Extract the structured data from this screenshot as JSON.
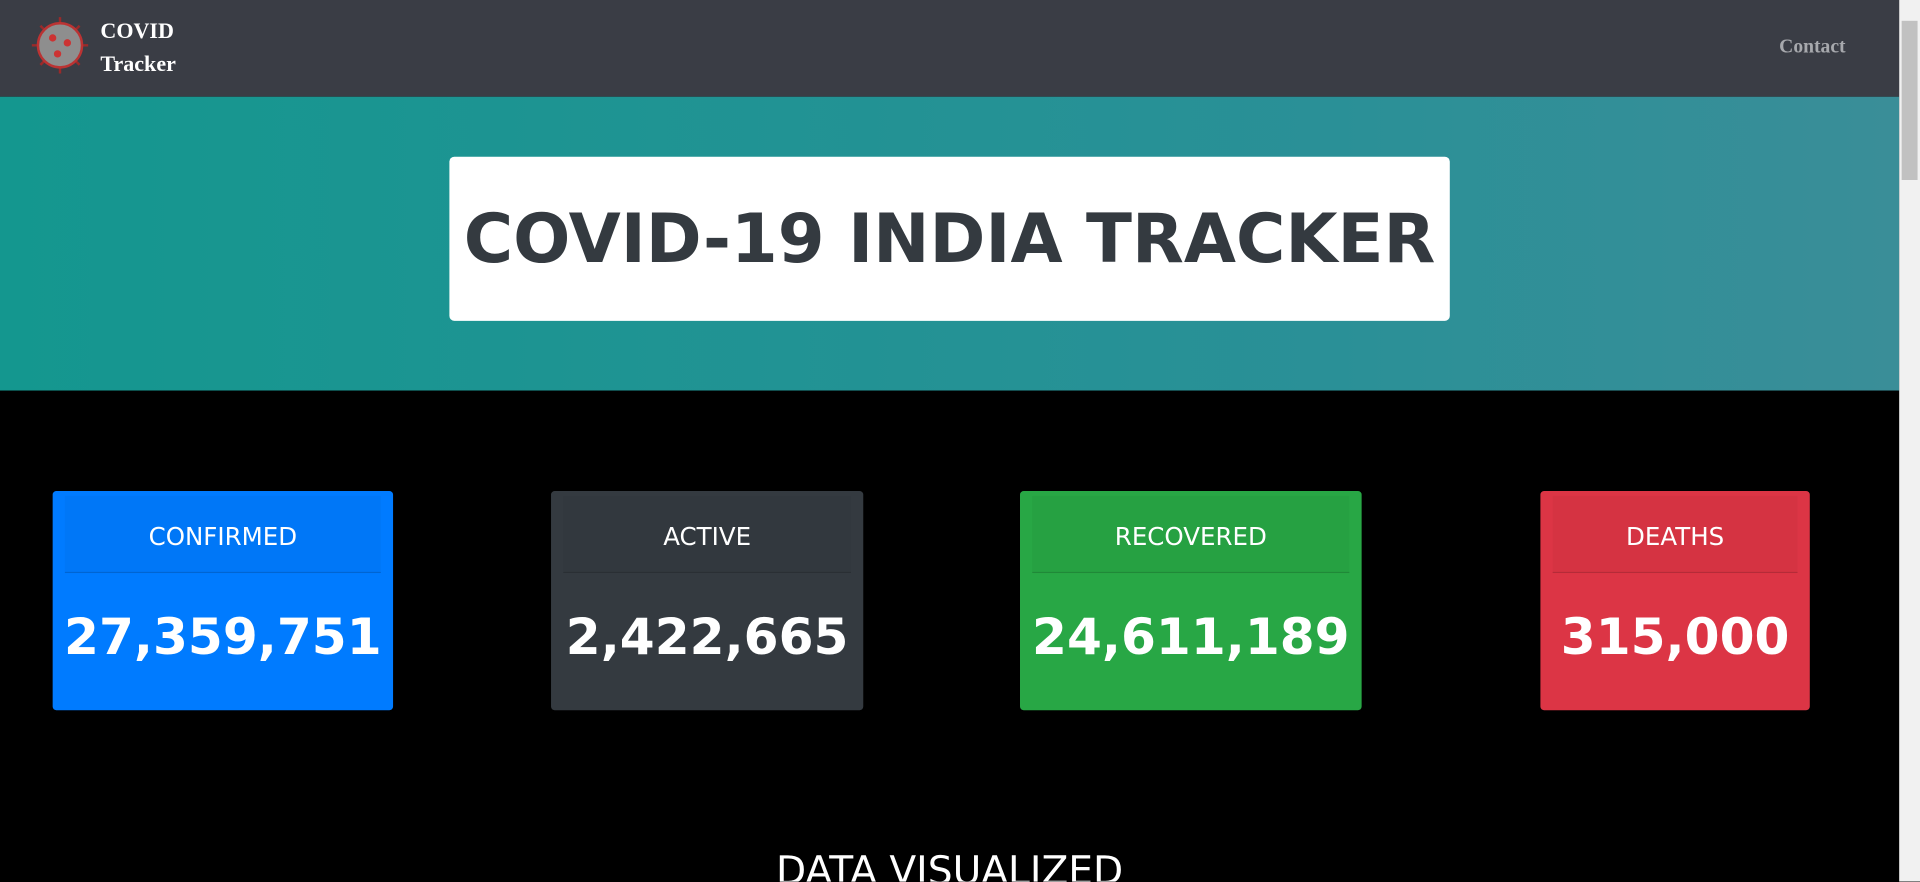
{
  "nav": {
    "brand": [
      "COVID",
      "Tracker"
    ],
    "link": "Contact"
  },
  "hero": {
    "title": "COVID-19 INDIA TRACKER"
  },
  "cards": [
    {
      "label": "CONFIRMED",
      "value": "27,359,751"
    },
    {
      "label": "ACTIVE",
      "value": "2,422,665"
    },
    {
      "label": "RECOVERED",
      "value": "24,611,189"
    },
    {
      "label": "DEATHS",
      "value": "315,000"
    }
  ],
  "section": {
    "title": "DATA VISUALIZED"
  }
}
